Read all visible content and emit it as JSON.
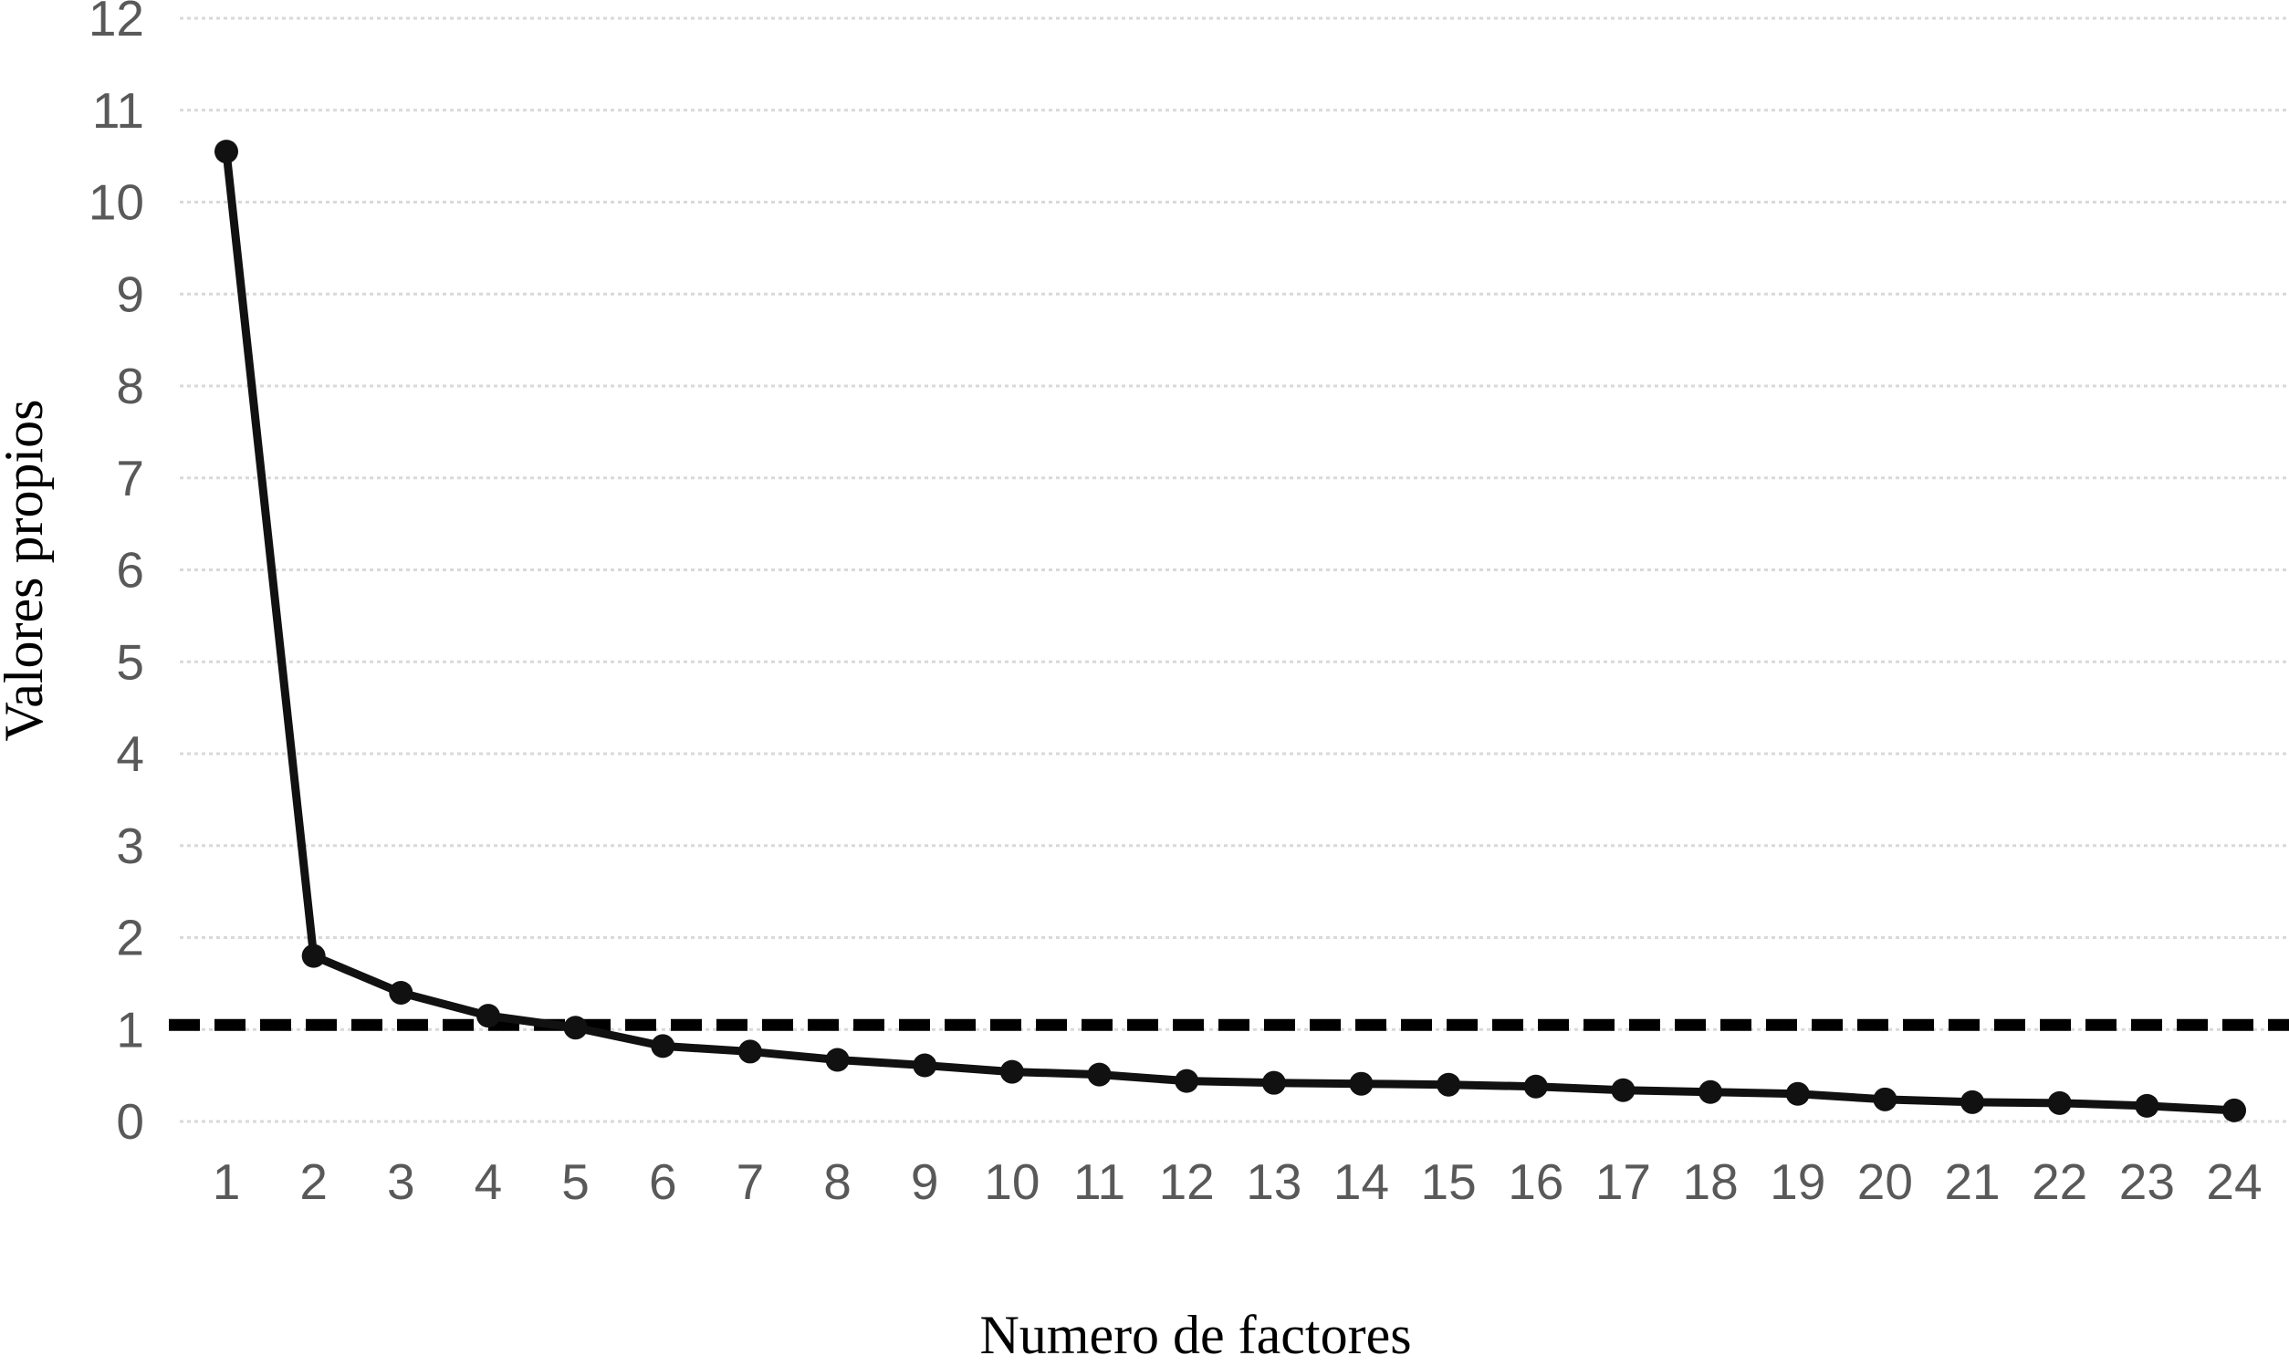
{
  "chart_data": {
    "type": "line",
    "title": "",
    "xlabel": "Numero de factores",
    "ylabel": "Valores propios",
    "categories": [
      1,
      2,
      3,
      4,
      5,
      6,
      7,
      8,
      9,
      10,
      11,
      12,
      13,
      14,
      15,
      16,
      17,
      18,
      19,
      20,
      21,
      22,
      23,
      24
    ],
    "values": [
      10.55,
      1.8,
      1.4,
      1.15,
      1.02,
      0.82,
      0.76,
      0.67,
      0.61,
      0.54,
      0.51,
      0.44,
      0.42,
      0.41,
      0.4,
      0.38,
      0.34,
      0.32,
      0.3,
      0.24,
      0.21,
      0.2,
      0.17,
      0.12
    ],
    "reference_line": 1.05,
    "ylim": [
      0,
      12
    ],
    "y_ticks": [
      0,
      1,
      2,
      3,
      4,
      5,
      6,
      7,
      8,
      9,
      10,
      11,
      12
    ],
    "grid": "horizontal-dotted",
    "legend": "none",
    "colors": {
      "line": "#111111",
      "marker": "#111111",
      "reference_line": "#000000",
      "gridline": "#d9d9d9",
      "tick_label": "#595959",
      "axis_title": "#000000"
    }
  }
}
